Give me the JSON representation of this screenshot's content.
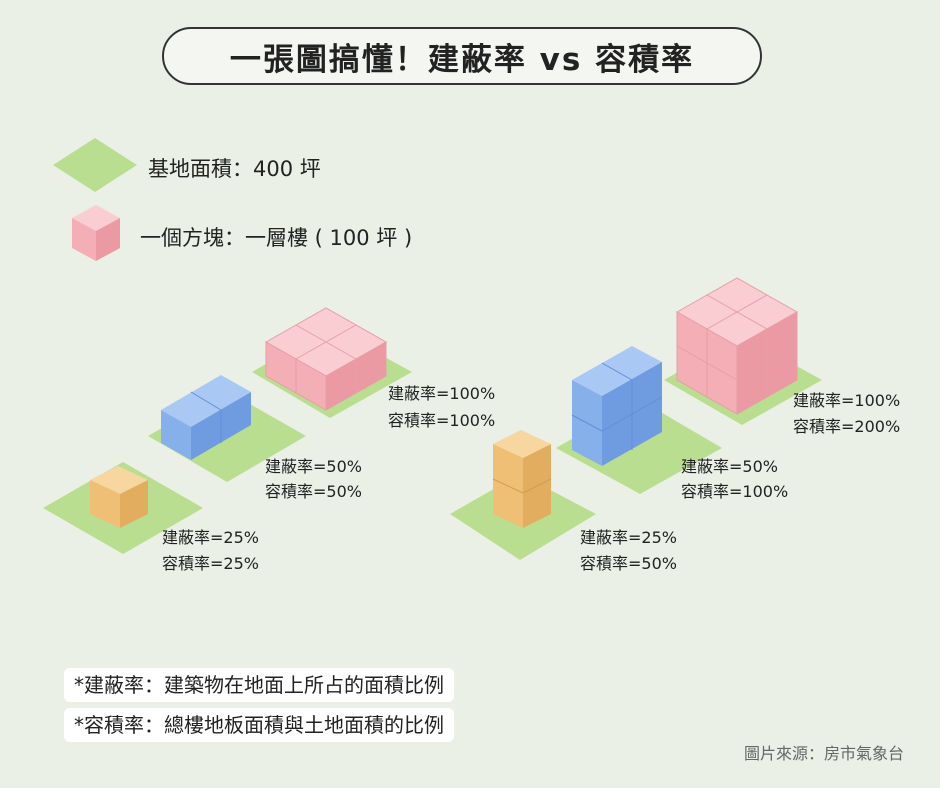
{
  "title": "一張圖搞懂！建蔽率 vs 容積率",
  "legend": {
    "land": "基地面積：400 坪",
    "block": "一個方塊：一層樓 ( 100 坪 )"
  },
  "cases": [
    {
      "coverage": "建蔽率=25%",
      "far": "容積率=25%"
    },
    {
      "coverage": "建蔽率=50%",
      "far": "容積率=50%"
    },
    {
      "coverage": "建蔽率=100%",
      "far": "容積率=100%"
    },
    {
      "coverage": "建蔽率=25%",
      "far": "容積率=50%"
    },
    {
      "coverage": "建蔽率=50%",
      "far": "容積率=100%"
    },
    {
      "coverage": "建蔽率=100%",
      "far": "容積率=200%"
    }
  ],
  "notes": [
    "*建蔽率：建築物在地面上所占的面積比例",
    "*容積率：總樓地板面積與土地面積的比例"
  ],
  "source": "圖片來源：房市氣象台",
  "colors": {
    "land": "#b9de8f",
    "orange": "#f2c27d",
    "blue": "#7aa9e8",
    "pink": "#f6b8bf"
  }
}
